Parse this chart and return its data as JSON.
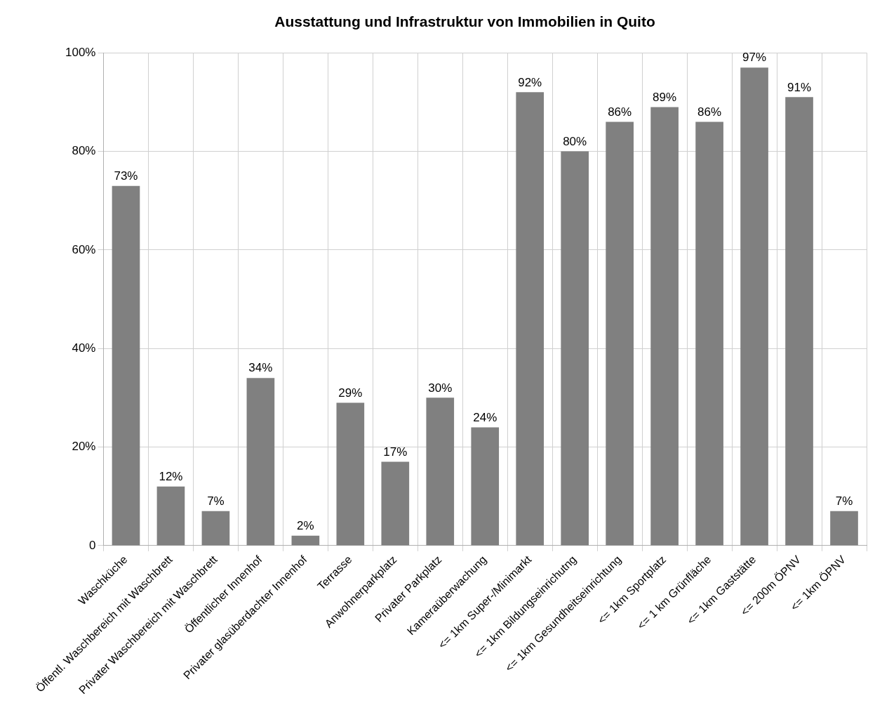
{
  "chart_data": {
    "type": "bar",
    "title": "Ausstattung und Infrastruktur von Immobilien in Quito",
    "categories": [
      "Waschküche",
      "Öffentl. Waschbereich mit Waschbrett",
      "Privater Waschbereich mit Waschbrett",
      "Öffentlicher Innenhof",
      "Privater glasüberdachter Innenhof",
      "Terrasse",
      "Anwohnerparkplatz",
      "Privater Parkplatz",
      "Kameraüberwachung",
      "<= 1km Super-/Minimarkt",
      "<= 1km Bildungseinrichutng",
      "<= 1km Gesundheitseinrichtung",
      "<= 1km Sportplatz",
      "<= 1 km Grünfläche",
      "<= 1km Gaststätte",
      "<= 200m ÖPNV",
      "<= 1km ÖPNV"
    ],
    "values": [
      73,
      12,
      7,
      34,
      2,
      29,
      17,
      30,
      24,
      92,
      80,
      86,
      89,
      86,
      97,
      91,
      7
    ],
    "value_labels": [
      "73%",
      "12%",
      "7%",
      "34%",
      "2%",
      "29%",
      "17%",
      "30%",
      "24%",
      "92%",
      "80%",
      "86%",
      "89%",
      "86%",
      "97%",
      "91%",
      "7%"
    ],
    "color": "#808080",
    "ylim": [
      0,
      100
    ],
    "yticks": [
      {
        "value": 0,
        "label": "0"
      },
      {
        "value": 20,
        "label": "20%"
      },
      {
        "value": 40,
        "label": "40%"
      },
      {
        "value": 60,
        "label": "60%"
      },
      {
        "value": 80,
        "label": "80%"
      },
      {
        "value": 100,
        "label": "100%"
      }
    ],
    "grid": true,
    "legend": false
  }
}
